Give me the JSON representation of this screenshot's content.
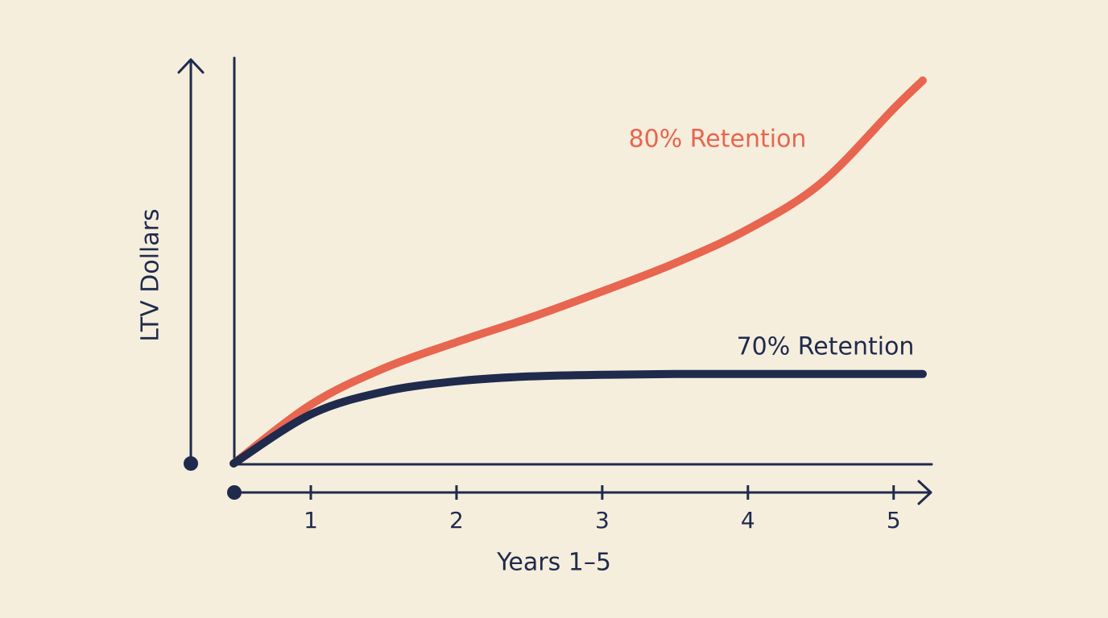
{
  "chart_data": {
    "type": "line",
    "x_label": "Years 1–5",
    "y_label": "LTV Dollars",
    "xlim": [
      0.475,
      5.25
    ],
    "xticks": [
      1,
      2,
      3,
      4,
      5
    ],
    "ylim": [
      0,
      100
    ],
    "x": [
      0.47,
      1,
      1.5,
      2,
      2.5,
      3,
      3.5,
      4,
      4.5,
      5,
      5.2
    ],
    "series": [
      {
        "name": "80% Retention",
        "color": "#e8654f",
        "values": [
          0,
          14.6,
          23.6,
          30.1,
          36.1,
          42.7,
          49.7,
          58.1,
          69.5,
          88.0,
          95.0
        ]
      },
      {
        "name": "70% Retention",
        "color": "#1f2a4d",
        "values": [
          0,
          12.2,
          17.8,
          20.4,
          21.6,
          22.0,
          22.2,
          22.2,
          22.2,
          22.2,
          22.2
        ]
      }
    ]
  }
}
